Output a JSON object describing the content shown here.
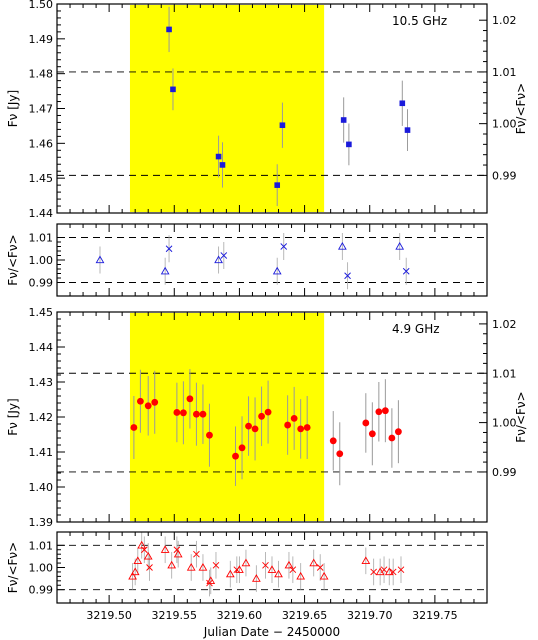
{
  "xlabel": "Julian Date − 2450000",
  "xticks": [
    "3219.50",
    "3219.55",
    "3219.60",
    "3219.65",
    "3219.70",
    "3219.75"
  ],
  "chart_data": [
    {
      "type": "scatter",
      "id": "flux_10_5",
      "label": "10.5 GHz",
      "label_color": "#1a1adb",
      "ylabel": "Fν [Jy]",
      "y2label": "Fν/<Fν>",
      "ylim": [
        1.44,
        1.5
      ],
      "yticks": [
        "1.44",
        "1.45",
        "1.46",
        "1.47",
        "1.48",
        "1.49",
        "1.50"
      ],
      "y2ticks": [
        "0.99",
        "1.00",
        "1.01",
        "1.02"
      ],
      "dashed_y": [
        1.4805,
        1.4508
      ],
      "highlight_x": [
        3219.516,
        3219.665
      ],
      "highlight_color": "#ffff00",
      "marker": "square",
      "color": "#1a1adb",
      "x": [
        3219.546,
        3219.549,
        3219.584,
        3219.587,
        3219.629,
        3219.633,
        3219.68,
        3219.684,
        3219.725,
        3219.729
      ],
      "y": [
        1.4927,
        1.4755,
        1.4562,
        1.4538,
        1.448,
        1.4652,
        1.4667,
        1.4597,
        1.4715,
        1.4638
      ],
      "err": [
        0.0065,
        0.006,
        0.006,
        0.0065,
        0.006,
        0.0065,
        0.0065,
        0.006,
        0.0065,
        0.006
      ]
    },
    {
      "type": "scatter",
      "id": "ratio_10_5",
      "ylabel": "Fν/<Fν>",
      "ylim": [
        0.984,
        1.016
      ],
      "yticks": [
        "0.99",
        "1.00",
        "1.01"
      ],
      "dashed_y": [
        1.01,
        0.99
      ],
      "series": [
        {
          "marker": "triangle",
          "color": "#1a1adb",
          "x": [
            3219.493,
            3219.543,
            3219.584,
            3219.629,
            3219.679,
            3219.723
          ],
          "y": [
            1.0,
            0.995,
            1.0,
            0.995,
            1.006,
            1.006
          ]
        },
        {
          "marker": "cross",
          "color": "#1a1adb",
          "x": [
            3219.546,
            3219.588,
            3219.634,
            3219.683,
            3219.728
          ],
          "y": [
            1.005,
            1.002,
            1.006,
            0.993,
            0.995
          ]
        }
      ]
    },
    {
      "type": "scatter",
      "id": "flux_4_9",
      "label": "4.9 GHz",
      "label_color": "#e8101a",
      "ylabel": "Fν [Jy]",
      "y2label": "Fν/<Fν>",
      "ylim": [
        1.39,
        1.45
      ],
      "yticks": [
        "1.39",
        "1.40",
        "1.41",
        "1.42",
        "1.43",
        "1.44",
        "1.45"
      ],
      "y2ticks": [
        "0.99",
        "1.00",
        "1.01",
        "1.02"
      ],
      "dashed_y": [
        1.4325,
        1.4043
      ],
      "highlight_x": [
        3219.516,
        3219.665
      ],
      "highlight_color": "#ffff00",
      "marker": "circle",
      "color": "#ff0000",
      "x": [
        3219.519,
        3219.524,
        3219.53,
        3219.535,
        3219.552,
        3219.557,
        3219.562,
        3219.567,
        3219.572,
        3219.577,
        3219.597,
        3219.602,
        3219.607,
        3219.612,
        3219.617,
        3219.622,
        3219.637,
        3219.642,
        3219.647,
        3219.652,
        3219.672,
        3219.677,
        3219.697,
        3219.702,
        3219.707,
        3219.712,
        3219.717,
        3219.722
      ],
      "y": [
        1.417,
        1.4245,
        1.4232,
        1.4242,
        1.4213,
        1.4212,
        1.4252,
        1.4208,
        1.4208,
        1.4148,
        1.4088,
        1.4112,
        1.4174,
        1.4166,
        1.4202,
        1.4214,
        1.4177,
        1.4196,
        1.4166,
        1.417,
        1.4132,
        1.4095,
        1.4183,
        1.4152,
        1.4215,
        1.4218,
        1.414,
        1.4158
      ],
      "err": [
        0.009,
        0.009,
        0.0085,
        0.009,
        0.0085,
        0.009,
        0.0085,
        0.009,
        0.0085,
        0.009,
        0.0085,
        0.009,
        0.0085,
        0.009,
        0.0085,
        0.009,
        0.0085,
        0.009,
        0.0085,
        0.009,
        0.0085,
        0.009,
        0.0085,
        0.009,
        0.0085,
        0.009,
        0.0085,
        0.009
      ]
    },
    {
      "type": "scatter",
      "id": "ratio_4_9",
      "ylabel": "Fν/<Fν>",
      "ylim": [
        0.984,
        1.016
      ],
      "yticks": [
        "0.99",
        "1.00",
        "1.01"
      ],
      "dashed_y": [
        1.01,
        0.99
      ],
      "series": [
        {
          "marker": "triangle",
          "color": "#ff0000",
          "x": [
            3219.518,
            3219.52,
            3219.522,
            3219.525,
            3219.53,
            3219.543,
            3219.548,
            3219.553,
            3219.563,
            3219.572,
            3219.578,
            3219.593,
            3219.6,
            3219.605,
            3219.613,
            3219.625,
            3219.63,
            3219.638,
            3219.647,
            3219.657,
            3219.665,
            3219.697,
            3219.708,
            3219.715
          ],
          "y": [
            0.996,
            0.998,
            1.003,
            1.01,
            1.005,
            1.008,
            1.001,
            1.006,
            1.0,
            1.0,
            0.994,
            0.997,
            0.999,
            1.002,
            0.995,
            0.999,
            0.997,
            1.001,
            0.996,
            1.002,
            0.996,
            1.003,
            0.998,
            0.998
          ]
        },
        {
          "marker": "cross",
          "color": "#ff0000",
          "x": [
            3219.527,
            3219.531,
            3219.552,
            3219.567,
            3219.577,
            3219.582,
            3219.598,
            3219.62,
            3219.641,
            3219.662,
            3219.703,
            3219.711,
            3219.718,
            3219.724
          ],
          "y": [
            1.008,
            1.0,
            1.008,
            1.006,
            0.993,
            1.001,
            0.999,
            1.001,
            0.999,
            1.0,
            0.998,
            0.999,
            0.998,
            0.999
          ]
        }
      ]
    }
  ]
}
